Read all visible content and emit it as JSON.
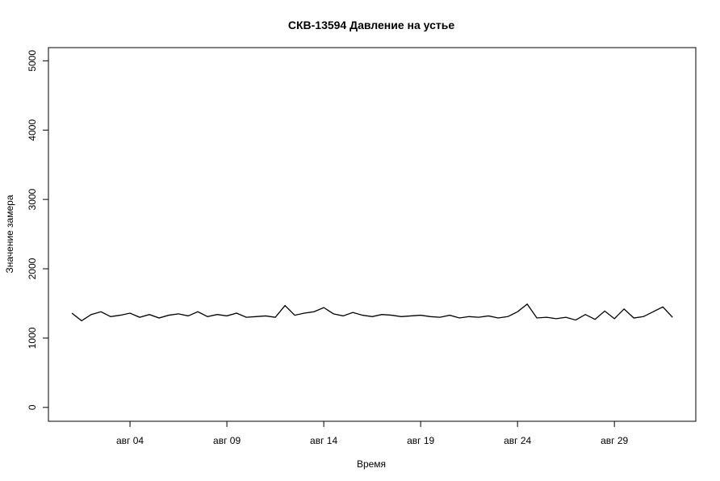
{
  "chart_data": {
    "type": "line",
    "title": "СКВ-13594 Давление на устье",
    "x_label": "Время",
    "y_label": "Значение замера",
    "x": [
      1,
      1.5,
      2,
      2.5,
      3,
      3.5,
      4,
      4.5,
      5,
      5.5,
      6,
      6.5,
      7,
      7.5,
      8,
      8.5,
      9,
      9.5,
      10,
      10.5,
      11,
      11.5,
      12,
      12.5,
      13,
      13.5,
      14,
      14.5,
      15,
      15.5,
      16,
      16.5,
      17,
      17.5,
      18,
      18.5,
      19,
      19.5,
      20,
      20.5,
      21,
      21.5,
      22,
      22.5,
      23,
      23.5,
      24,
      24.5,
      25,
      25.5,
      26,
      26.5,
      27,
      27.5,
      28,
      28.5,
      29,
      29.5,
      30,
      30.5,
      31,
      31.5,
      32
    ],
    "series": [
      {
        "name": "Давление на устье",
        "color": "#000000",
        "values": [
          1360,
          1250,
          1340,
          1380,
          1310,
          1330,
          1360,
          1300,
          1340,
          1290,
          1330,
          1350,
          1320,
          1380,
          1310,
          1340,
          1320,
          1360,
          1300,
          1310,
          1320,
          1300,
          1470,
          1330,
          1360,
          1380,
          1440,
          1350,
          1320,
          1370,
          1330,
          1310,
          1340,
          1330,
          1310,
          1320,
          1330,
          1310,
          1300,
          1330,
          1290,
          1310,
          1300,
          1320,
          1290,
          1310,
          1380,
          1490,
          1290,
          1300,
          1280,
          1300,
          1260,
          1340,
          1270,
          1390,
          1280,
          1420,
          1290,
          1310,
          1380,
          1450,
          1300
        ]
      }
    ],
    "xlim": [
      -0.21,
      33.2
    ],
    "xticks": [
      {
        "value": 4,
        "label": "авг 04"
      },
      {
        "value": 9,
        "label": "авг 09"
      },
      {
        "value": 14,
        "label": "авг 14"
      },
      {
        "value": 19,
        "label": "авг 19"
      },
      {
        "value": 24,
        "label": "авг 24"
      },
      {
        "value": 29,
        "label": "авг 29"
      }
    ],
    "ylim": [
      -200,
      5190
    ],
    "yticks": [
      0,
      1000,
      2000,
      3000,
      4000,
      5000
    ]
  }
}
